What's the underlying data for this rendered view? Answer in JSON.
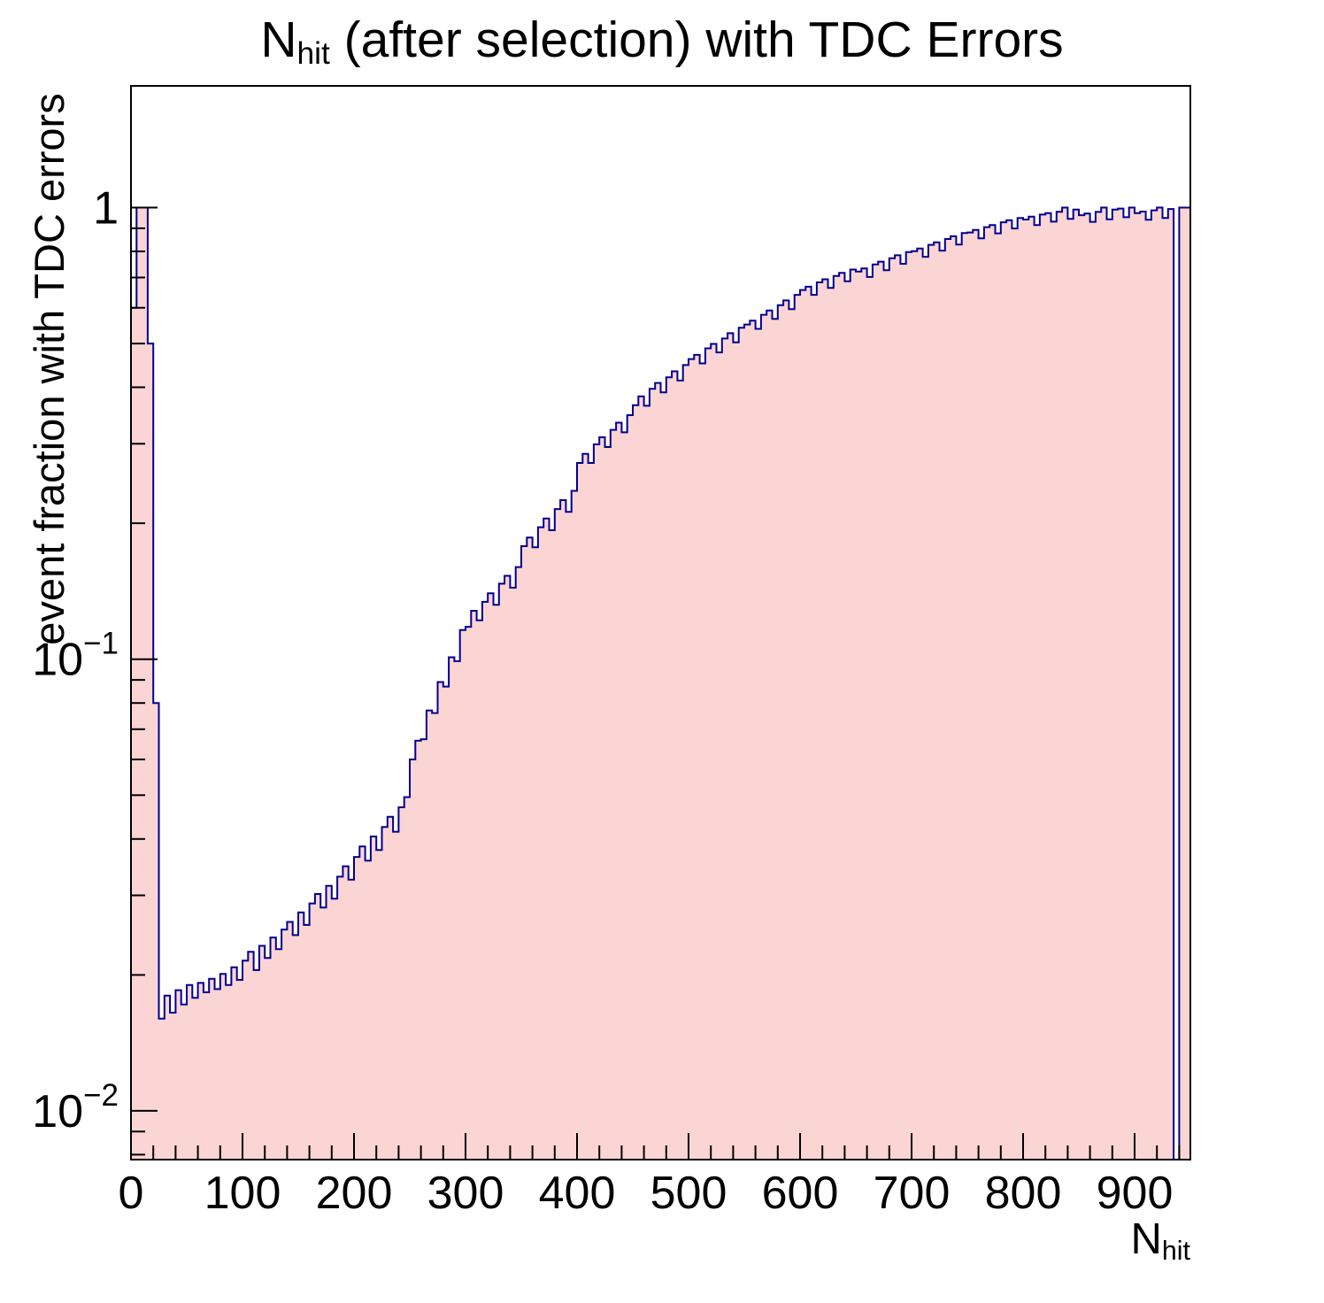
{
  "chart": {
    "title": {
      "pre": "N",
      "sub": "hit",
      "post": " (after selection) with TDC Errors"
    },
    "ylabel": "event fraction with TDC errors",
    "xlabel": {
      "pre": "N",
      "sub": "hit"
    }
  },
  "chart_data": {
    "type": "histogram",
    "title": "N_hit (after selection) with TDC Errors",
    "xlabel": "N_hit",
    "ylabel": "event fraction with TDC errors",
    "yscale": "log",
    "xlim": [
      0,
      950
    ],
    "ylim": [
      0.0078,
      1.86
    ],
    "grid": false,
    "legend": "none",
    "x_start": 0,
    "x_step": 5,
    "values": [
      0.6,
      1.0,
      1.0,
      0.5,
      0.08,
      0.016,
      0.018,
      0.0165,
      0.0185,
      0.0172,
      0.019,
      0.0178,
      0.0192,
      0.0183,
      0.0196,
      0.0186,
      0.0201,
      0.019,
      0.0208,
      0.0195,
      0.0215,
      0.0225,
      0.0205,
      0.0232,
      0.0218,
      0.0242,
      0.0228,
      0.0252,
      0.0262,
      0.0245,
      0.0275,
      0.0258,
      0.0288,
      0.0302,
      0.0282,
      0.0315,
      0.0295,
      0.033,
      0.0348,
      0.0325,
      0.0365,
      0.0385,
      0.0358,
      0.0405,
      0.0378,
      0.0425,
      0.0448,
      0.0415,
      0.047,
      0.0495,
      0.06,
      0.066,
      0.0665,
      0.077,
      0.076,
      0.089,
      0.087,
      0.101,
      0.099,
      0.116,
      0.118,
      0.128,
      0.122,
      0.134,
      0.14,
      0.132,
      0.147,
      0.153,
      0.144,
      0.16,
      0.178,
      0.186,
      0.177,
      0.196,
      0.205,
      0.193,
      0.215,
      0.225,
      0.212,
      0.236,
      0.272,
      0.285,
      0.272,
      0.299,
      0.31,
      0.295,
      0.322,
      0.334,
      0.318,
      0.347,
      0.365,
      0.382,
      0.364,
      0.397,
      0.409,
      0.39,
      0.421,
      0.434,
      0.414,
      0.448,
      0.462,
      0.472,
      0.452,
      0.488,
      0.499,
      0.478,
      0.513,
      0.527,
      0.503,
      0.542,
      0.551,
      0.562,
      0.539,
      0.579,
      0.592,
      0.567,
      0.608,
      0.623,
      0.596,
      0.641,
      0.657,
      0.668,
      0.641,
      0.683,
      0.694,
      0.664,
      0.706,
      0.717,
      0.687,
      0.729,
      0.722,
      0.733,
      0.702,
      0.748,
      0.759,
      0.727,
      0.772,
      0.784,
      0.751,
      0.797,
      0.801,
      0.812,
      0.778,
      0.827,
      0.838,
      0.803,
      0.852,
      0.864,
      0.828,
      0.878,
      0.881,
      0.892,
      0.855,
      0.905,
      0.915,
      0.877,
      0.928,
      0.938,
      0.899,
      0.948,
      0.941,
      0.955,
      0.915,
      0.965,
      0.972,
      0.931,
      0.979,
      1.0,
      0.944,
      0.99,
      0.962,
      0.97,
      0.93,
      0.978,
      1.0,
      0.942,
      0.99,
      0.995,
      0.952,
      1.0,
      0.972,
      0.98,
      0.94,
      0.986,
      1.0,
      0.948,
      0.993,
      0.0078,
      1.0,
      1.0
    ],
    "x_major_ticks": [
      0,
      100,
      200,
      300,
      400,
      500,
      600,
      700,
      800,
      900
    ],
    "x_minor_step": 20,
    "y_ticks": [
      {
        "value": 1,
        "base": "1",
        "exp": ""
      },
      {
        "value": 0.1,
        "base": "10",
        "exp": "−1"
      },
      {
        "value": 0.01,
        "base": "10",
        "exp": "−2"
      }
    ],
    "colors": {
      "line": "#00008f",
      "fill": "#fbd4d4",
      "axis": "#000000"
    }
  }
}
